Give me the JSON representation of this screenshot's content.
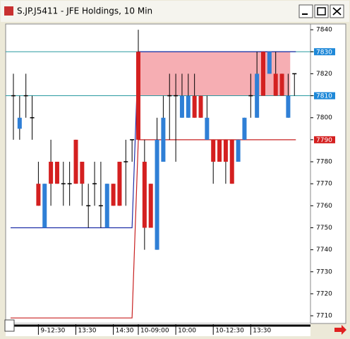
{
  "window": {
    "title": "S.JP.J5411 - JFE Holdings, 10 Min"
  },
  "chart_data": {
    "type": "candlestick",
    "categories": [
      null,
      null,
      null,
      null,
      "9-12:30",
      null,
      null,
      null,
      null,
      null,
      "13:30",
      null,
      null,
      null,
      null,
      null,
      "14:30",
      null,
      null,
      null,
      "10-09:00",
      null,
      null,
      null,
      null,
      null,
      "10:00",
      null,
      null,
      null,
      null,
      null,
      "10-12:30",
      null,
      null,
      null,
      null,
      null,
      "13:30",
      null,
      null,
      null,
      null,
      null,
      null,
      null
    ],
    "open": [
      7810,
      7800,
      7810,
      7800,
      7760,
      7770,
      7770,
      7770,
      7770,
      7770,
      7770,
      7770,
      7760,
      7770,
      7760,
      7770,
      7760,
      7760,
      7780,
      7790,
      7790,
      7750,
      7750,
      7790,
      7800,
      7810,
      7810,
      7810,
      7810,
      7800,
      7800,
      7800,
      7780,
      7780,
      7780,
      7770,
      7790,
      7800,
      7810,
      7820,
      7810,
      7830,
      7810,
      7810,
      7810,
      7820
    ],
    "high": [
      7820,
      7810,
      7820,
      7810,
      7780,
      7770,
      7790,
      7780,
      7780,
      7780,
      7790,
      7780,
      7770,
      7780,
      7780,
      7770,
      7770,
      7780,
      7790,
      7790,
      7840,
      7790,
      7770,
      7800,
      7810,
      7820,
      7820,
      7820,
      7820,
      7820,
      7810,
      7810,
      7790,
      7790,
      7790,
      7790,
      7790,
      7800,
      7820,
      7830,
      7830,
      7830,
      7830,
      7820,
      7820,
      7820
    ],
    "low": [
      7790,
      7790,
      7800,
      7790,
      7760,
      7750,
      7760,
      7770,
      7760,
      7760,
      7770,
      7760,
      7750,
      7760,
      7750,
      7750,
      7760,
      7760,
      7760,
      7780,
      7790,
      7740,
      7750,
      7740,
      7780,
      7790,
      7780,
      7800,
      7800,
      7800,
      7800,
      7790,
      7770,
      7780,
      7770,
      7770,
      7780,
      7790,
      7800,
      7800,
      7810,
      7820,
      7810,
      7810,
      7800,
      7810
    ],
    "close": [
      7810,
      7795,
      7810,
      7800,
      7770,
      7750,
      7780,
      7780,
      7770,
      7770,
      7790,
      7780,
      7760,
      7770,
      7760,
      7750,
      7770,
      7780,
      7780,
      7790,
      7830,
      7780,
      7770,
      7740,
      7780,
      7810,
      7810,
      7800,
      7800,
      7810,
      7810,
      7790,
      7790,
      7790,
      7790,
      7790,
      7780,
      7790,
      7810,
      7800,
      7830,
      7820,
      7820,
      7820,
      7800,
      7820
    ],
    "up_color": "#d42020",
    "down_color": "#2f7fd6",
    "lines": [
      {
        "color": "#1f2fa8",
        "values": [
          7750,
          7750,
          7750,
          7750,
          7750,
          7750,
          7750,
          7750,
          7750,
          7750,
          7750,
          7750,
          7750,
          7750,
          7750,
          7750,
          7750,
          7750,
          7750,
          7750,
          7830,
          7830,
          7830,
          7830,
          7830,
          7830,
          7830,
          7830,
          7830,
          7830,
          7830,
          7830,
          7830,
          7830,
          7830,
          7830,
          7830,
          7830,
          7830,
          7830,
          7830,
          7830,
          7830,
          7830,
          7830,
          7830
        ]
      },
      {
        "color": "#c82020",
        "values": [
          7709,
          7709,
          7709,
          7709,
          7709,
          7709,
          7709,
          7709,
          7709,
          7709,
          7709,
          7709,
          7709,
          7709,
          7709,
          7709,
          7709,
          7709,
          7709,
          7709,
          7790,
          7790,
          7790,
          7790,
          7790,
          7790,
          7790,
          7790,
          7790,
          7790,
          7790,
          7790,
          7790,
          7790,
          7790,
          7790,
          7790,
          7790,
          7790,
          7790,
          7790,
          7790,
          7790,
          7790,
          7790,
          7790
        ]
      }
    ],
    "levels": [
      {
        "value": 7830,
        "color": "#2a9aa0"
      },
      {
        "value": 7810,
        "color": "#2a9aa0"
      }
    ],
    "zone": {
      "low": 7810,
      "high": 7830,
      "color": "#f4a0a6"
    },
    "price_markers": [
      {
        "value": 7830,
        "color": "#1e88d8"
      },
      {
        "value": 7810,
        "color": "#1e88d8"
      },
      {
        "value": 7790,
        "color": "#d42020"
      }
    ],
    "ylim": [
      7706.5,
      7842.6
    ],
    "yticks": [
      7840,
      7830,
      7820,
      7810,
      7800,
      7790,
      7780,
      7770,
      7760,
      7750,
      7740,
      7730,
      7720,
      7710
    ]
  }
}
